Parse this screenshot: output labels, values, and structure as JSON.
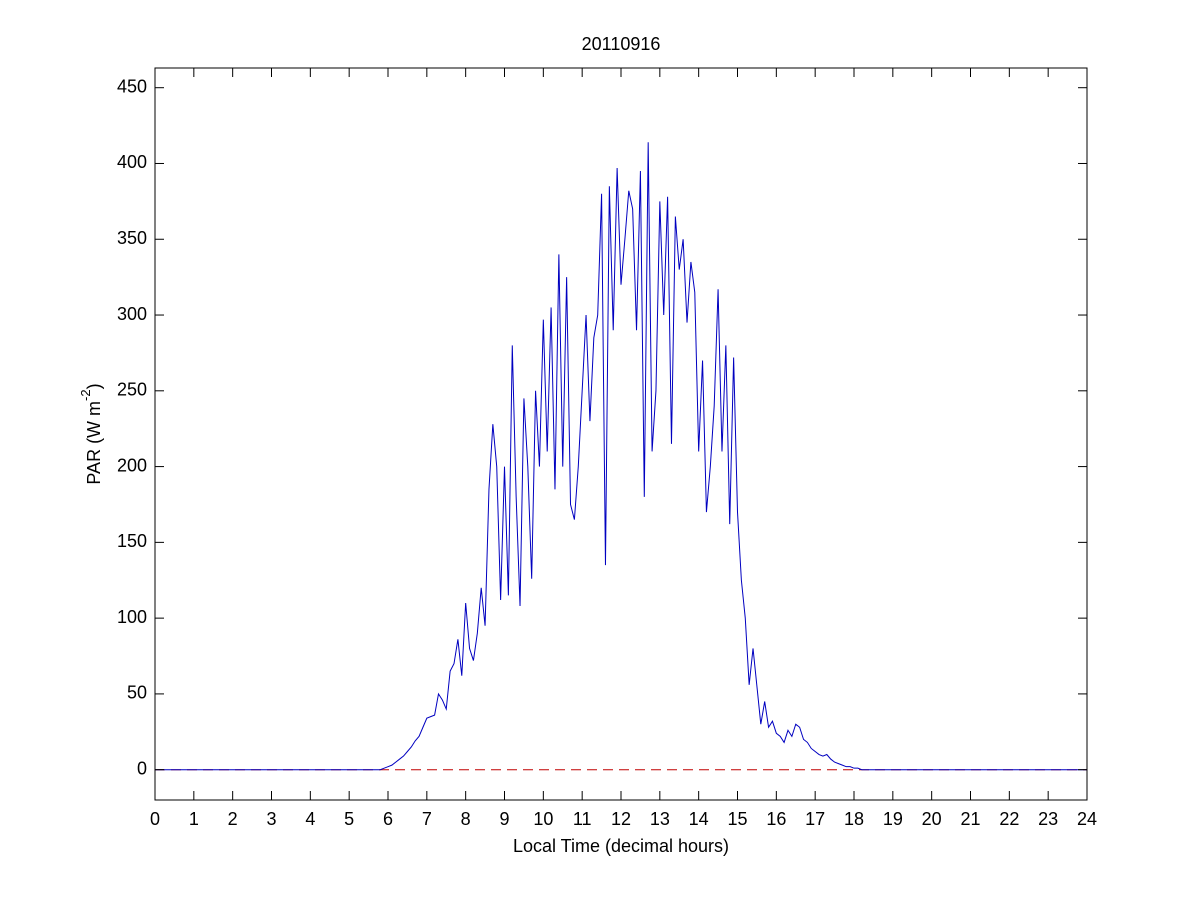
{
  "chart_data": {
    "type": "line",
    "title": "20110916",
    "xlabel": "Local Time (decimal hours)",
    "ylabel_parts": [
      "PAR (W m",
      "-2",
      ")"
    ],
    "xlim": [
      0,
      24
    ],
    "xticks": [
      0,
      1,
      2,
      3,
      4,
      5,
      6,
      7,
      8,
      9,
      10,
      11,
      12,
      13,
      14,
      15,
      16,
      17,
      18,
      19,
      20,
      21,
      22,
      23,
      24
    ],
    "ylim": [
      -20,
      463
    ],
    "yticks": [
      0,
      50,
      100,
      150,
      200,
      250,
      300,
      350,
      400,
      450
    ],
    "grid": false,
    "box": true,
    "reference_line": {
      "value": 0,
      "color": "#c00000",
      "style": "dashed"
    },
    "series": [
      {
        "color": "#0000c0",
        "x": [
          0,
          5.8,
          5.9,
          6.0,
          6.1,
          6.2,
          6.3,
          6.4,
          6.5,
          6.6,
          6.7,
          6.8,
          6.9,
          7.0,
          7.1,
          7.2,
          7.3,
          7.4,
          7.5,
          7.6,
          7.7,
          7.8,
          7.9,
          8.0,
          8.1,
          8.2,
          8.3,
          8.4,
          8.5,
          8.6,
          8.7,
          8.8,
          8.9,
          9.0,
          9.1,
          9.2,
          9.3,
          9.4,
          9.5,
          9.6,
          9.7,
          9.8,
          9.9,
          10.0,
          10.1,
          10.2,
          10.3,
          10.4,
          10.5,
          10.6,
          10.7,
          10.8,
          10.9,
          11.0,
          11.1,
          11.2,
          11.3,
          11.4,
          11.5,
          11.6,
          11.7,
          11.8,
          11.9,
          12.0,
          12.1,
          12.2,
          12.3,
          12.4,
          12.5,
          12.6,
          12.7,
          12.8,
          12.9,
          13.0,
          13.1,
          13.2,
          13.3,
          13.4,
          13.5,
          13.6,
          13.7,
          13.8,
          13.9,
          14.0,
          14.1,
          14.2,
          14.3,
          14.4,
          14.5,
          14.6,
          14.7,
          14.8,
          14.9,
          15.0,
          15.1,
          15.2,
          15.3,
          15.4,
          15.5,
          15.6,
          15.7,
          15.8,
          15.9,
          16.0,
          16.1,
          16.2,
          16.3,
          16.4,
          16.5,
          16.6,
          16.7,
          16.8,
          16.9,
          17.0,
          17.1,
          17.2,
          17.3,
          17.4,
          17.5,
          17.6,
          17.7,
          17.8,
          17.9,
          18.0,
          18.1,
          18.2,
          18.3,
          24
        ],
        "values": [
          0,
          0,
          1,
          2,
          3,
          5,
          7,
          9,
          12,
          15,
          19,
          22,
          28,
          34,
          35,
          36,
          50,
          46,
          40,
          65,
          70,
          86,
          62,
          110,
          80,
          72,
          90,
          120,
          95,
          185,
          228,
          200,
          112,
          200,
          115,
          280,
          180,
          108,
          245,
          200,
          126,
          250,
          200,
          297,
          210,
          305,
          185,
          340,
          200,
          325,
          175,
          165,
          200,
          250,
          300,
          230,
          285,
          300,
          380,
          135,
          385,
          290,
          397,
          320,
          350,
          382,
          370,
          290,
          395,
          180,
          414,
          210,
          250,
          375,
          300,
          378,
          215,
          365,
          330,
          350,
          295,
          335,
          315,
          210,
          270,
          170,
          200,
          240,
          317,
          210,
          280,
          162,
          272,
          170,
          125,
          100,
          56,
          80,
          55,
          30,
          45,
          28,
          32,
          24,
          22,
          18,
          26,
          22,
          30,
          28,
          20,
          18,
          14,
          12,
          10,
          9,
          10,
          7,
          5,
          4,
          3,
          2,
          2,
          1,
          1,
          0,
          0,
          0
        ]
      }
    ]
  }
}
